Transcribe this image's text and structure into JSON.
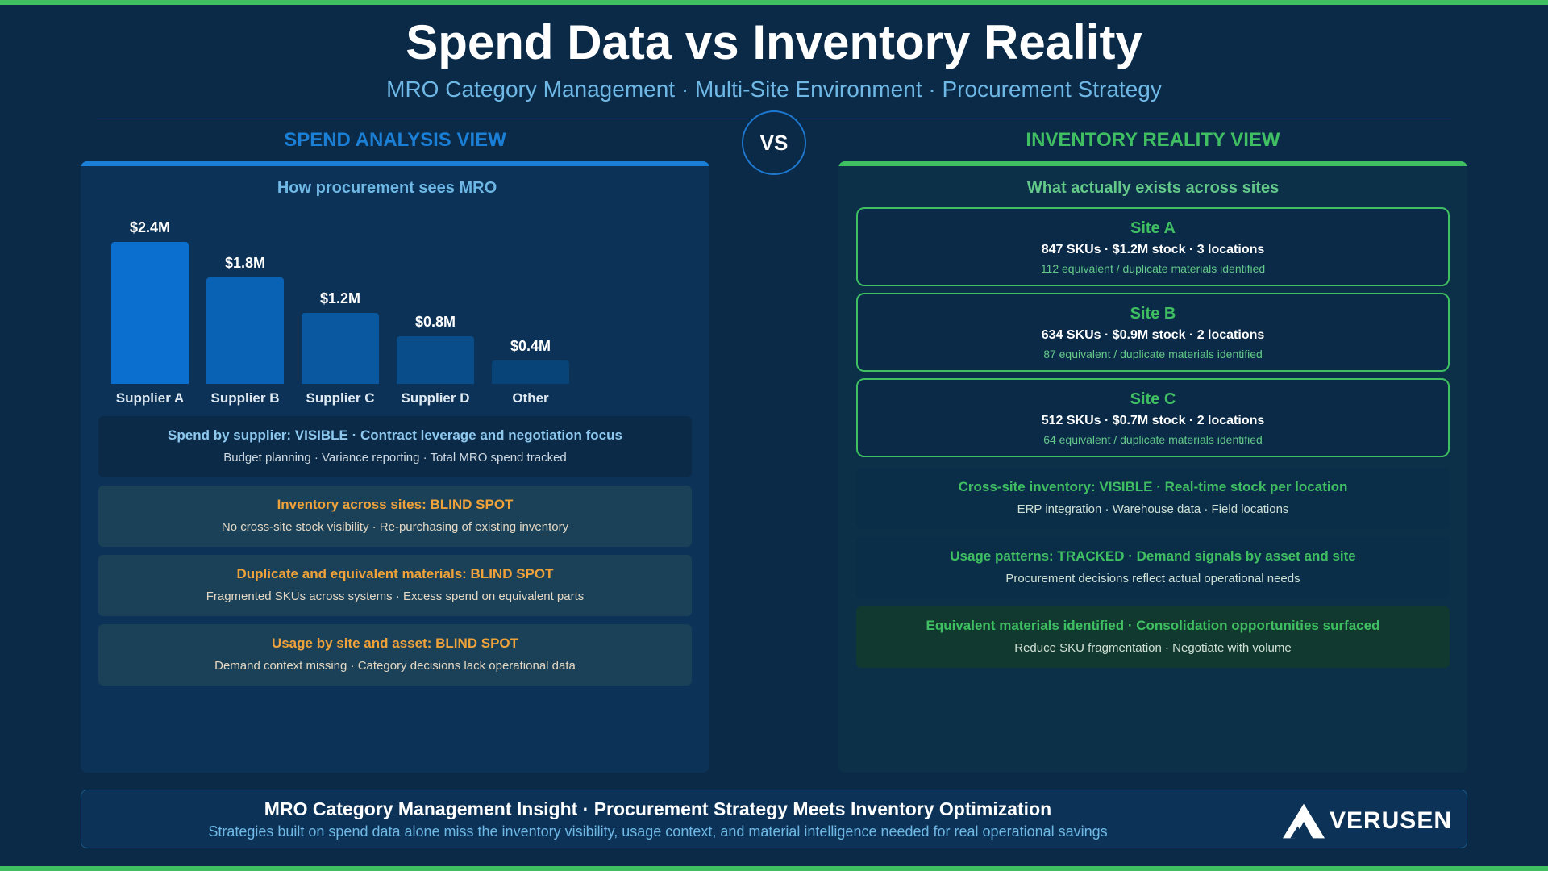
{
  "header": {
    "title": "Spend Data vs Inventory Reality",
    "subtitle": "MRO Category Management · Multi-Site Environment · Procurement Strategy",
    "vs": "VS"
  },
  "left": {
    "heading": "SPEND ANALYSIS VIEW",
    "subheading": "How procurement sees MRO",
    "info": [
      {
        "title": " Spend by supplier: VISIBLE · Contract leverage and negotiation focus",
        "detail": "Budget planning · Variance reporting · Total MRO spend tracked"
      },
      {
        "title": " Inventory across sites: BLIND SPOT",
        "detail": "No cross-site stock visibility · Re-purchasing of existing inventory"
      },
      {
        "title": " Duplicate and equivalent materials: BLIND SPOT",
        "detail": "Fragmented SKUs across systems · Excess spend on equivalent parts"
      },
      {
        "title": " Usage by site and asset: BLIND SPOT",
        "detail": "Demand context missing · Category decisions lack operational data"
      }
    ]
  },
  "chart_data": {
    "type": "bar",
    "categories": [
      "Supplier A",
      "Supplier B",
      "Supplier C",
      "Supplier D",
      "Other"
    ],
    "values": [
      2.4,
      1.8,
      1.2,
      0.8,
      0.4
    ],
    "value_labels": [
      "$2.4M",
      "$1.8M",
      "$1.2M",
      "$0.8M",
      "$0.4M"
    ],
    "title": "",
    "xlabel": "",
    "ylabel": "",
    "ylim": [
      0,
      2.4
    ],
    "colors": [
      "#0b6fd0",
      "#0a62b5",
      "#0a589f",
      "#094d8a",
      "#084477"
    ]
  },
  "right": {
    "heading": "INVENTORY REALITY VIEW",
    "subheading": "What actually exists across sites",
    "sites": [
      {
        "name": "Site A",
        "stats": "847 SKUs · $1.2M stock · 3 locations",
        "dupes": "112 equivalent / duplicate materials identified"
      },
      {
        "name": "Site B",
        "stats": "634 SKUs · $0.9M stock · 2 locations",
        "dupes": "87 equivalent / duplicate materials identified"
      },
      {
        "name": "Site C",
        "stats": "512 SKUs · $0.7M stock · 2 locations",
        "dupes": "64 equivalent / duplicate materials identified"
      }
    ],
    "info": [
      {
        "title": " Cross-site inventory: VISIBLE · Real-time stock per location",
        "detail": "ERP integration · Warehouse data · Field locations"
      },
      {
        "title": " Usage patterns: TRACKED · Demand signals by asset and site",
        "detail": "Procurement decisions reflect actual operational needs"
      },
      {
        "title": " Equivalent materials identified · Consolidation opportunities surfaced",
        "detail": "Reduce SKU fragmentation · Negotiate with volume"
      }
    ]
  },
  "footer": {
    "title": "MRO Category Management Insight · Procurement Strategy Meets Inventory Optimization",
    "detail": "Strategies built on spend data alone miss the inventory visibility, usage context, and material intelligence needed for real operational savings",
    "logo_text": "VERUSEN"
  },
  "colors": {
    "background": "#0a2a47",
    "accent_green": "#3fbf62",
    "accent_blue": "#1b7fd6",
    "warning_orange": "#f0a23a"
  }
}
